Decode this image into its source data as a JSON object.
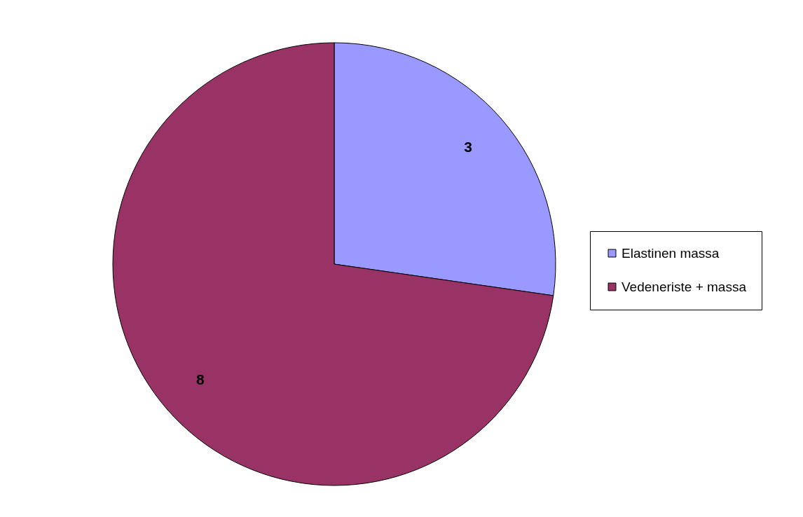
{
  "chart_data": {
    "type": "pie",
    "categories": [
      "Elastinen massa",
      "Vedeneriste + massa"
    ],
    "values": [
      3,
      8
    ],
    "colors": [
      "#9999ff",
      "#993366"
    ],
    "data_labels": true,
    "legend": "right"
  }
}
